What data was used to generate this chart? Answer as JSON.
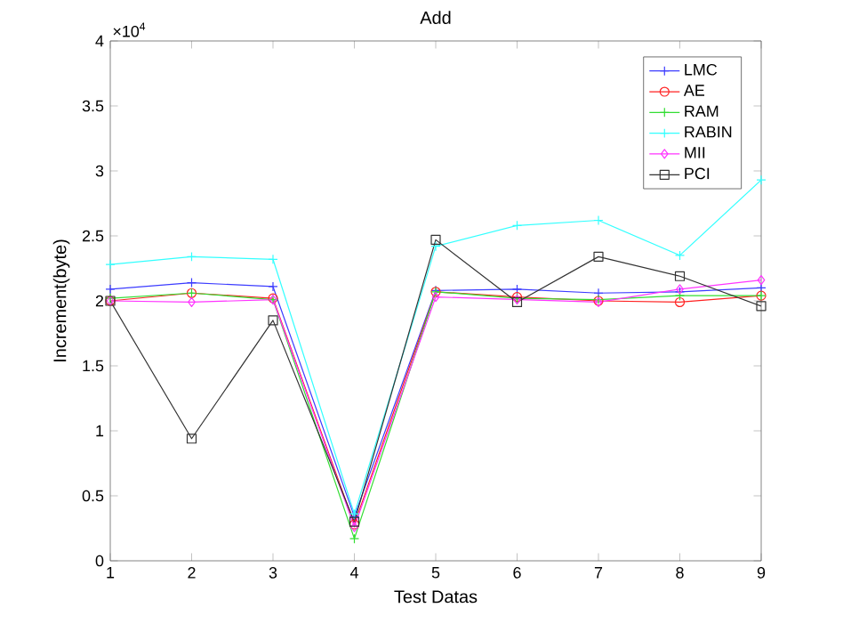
{
  "chart_data": {
    "type": "line",
    "title": "Add",
    "xlabel": "Test Datas",
    "ylabel": "Increment(byte)",
    "annotations": [
      "×10$^{4}$"
    ],
    "x": [
      1,
      2,
      3,
      4,
      5,
      6,
      7,
      8,
      9
    ],
    "xlim": [
      1,
      9
    ],
    "xticks": [
      1,
      2,
      3,
      4,
      5,
      6,
      7,
      8,
      9
    ],
    "ylim": [
      0,
      4
    ],
    "yticks": [
      0,
      0.5,
      1,
      1.5,
      2,
      2.5,
      3,
      3.5,
      4
    ],
    "grid": false,
    "legend": "top right",
    "line_style": "solid",
    "series": [
      {
        "name": "LMC",
        "color": "#3c3cff",
        "marker": "cross",
        "values": [
          2.09,
          2.14,
          2.11,
          0.34,
          2.08,
          2.09,
          2.06,
          2.07,
          2.1
        ]
      },
      {
        "name": "AE",
        "color": "#ff2020",
        "marker": "circle",
        "values": [
          2.0,
          2.06,
          2.02,
          0.28,
          2.07,
          2.03,
          2.0,
          1.99,
          2.04
        ]
      },
      {
        "name": "RAM",
        "color": "#33dd33",
        "marker": "cross",
        "values": [
          2.02,
          2.06,
          2.01,
          0.17,
          2.07,
          2.02,
          2.01,
          2.04,
          2.04
        ]
      },
      {
        "name": "RABIN",
        "color": "#33ffff",
        "marker": "cross",
        "values": [
          2.28,
          2.34,
          2.32,
          0.36,
          2.42,
          2.58,
          2.62,
          2.35,
          2.93
        ]
      },
      {
        "name": "MII",
        "color": "#ff33ff",
        "marker": "diamond",
        "values": [
          2.0,
          1.99,
          2.01,
          0.26,
          2.03,
          2.01,
          1.99,
          2.09,
          2.16
        ]
      },
      {
        "name": "PCI",
        "color": "#333333",
        "marker": "square",
        "values": [
          2.0,
          0.94,
          1.85,
          0.3,
          2.47,
          1.99,
          2.34,
          2.19,
          1.96
        ]
      }
    ]
  }
}
